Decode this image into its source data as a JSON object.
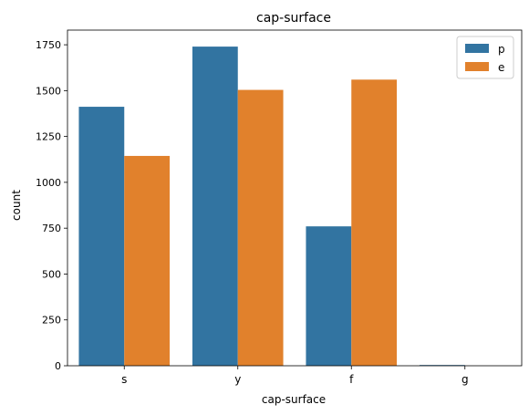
{
  "chart_data": {
    "type": "bar",
    "title": "cap-surface",
    "xlabel": "cap-surface",
    "ylabel": "count",
    "categories": [
      "s",
      "y",
      "f",
      "g"
    ],
    "series": [
      {
        "name": "p",
        "color": "#3274a1",
        "values": [
          1412,
          1740,
          760,
          4
        ]
      },
      {
        "name": "e",
        "color": "#e1812c",
        "values": [
          1144,
          1504,
          1560,
          0
        ]
      }
    ],
    "ylim": [
      0,
      1830
    ],
    "yticks": [
      0,
      250,
      500,
      750,
      1000,
      1250,
      1500,
      1750
    ],
    "grid": false,
    "legend": "top-right"
  }
}
